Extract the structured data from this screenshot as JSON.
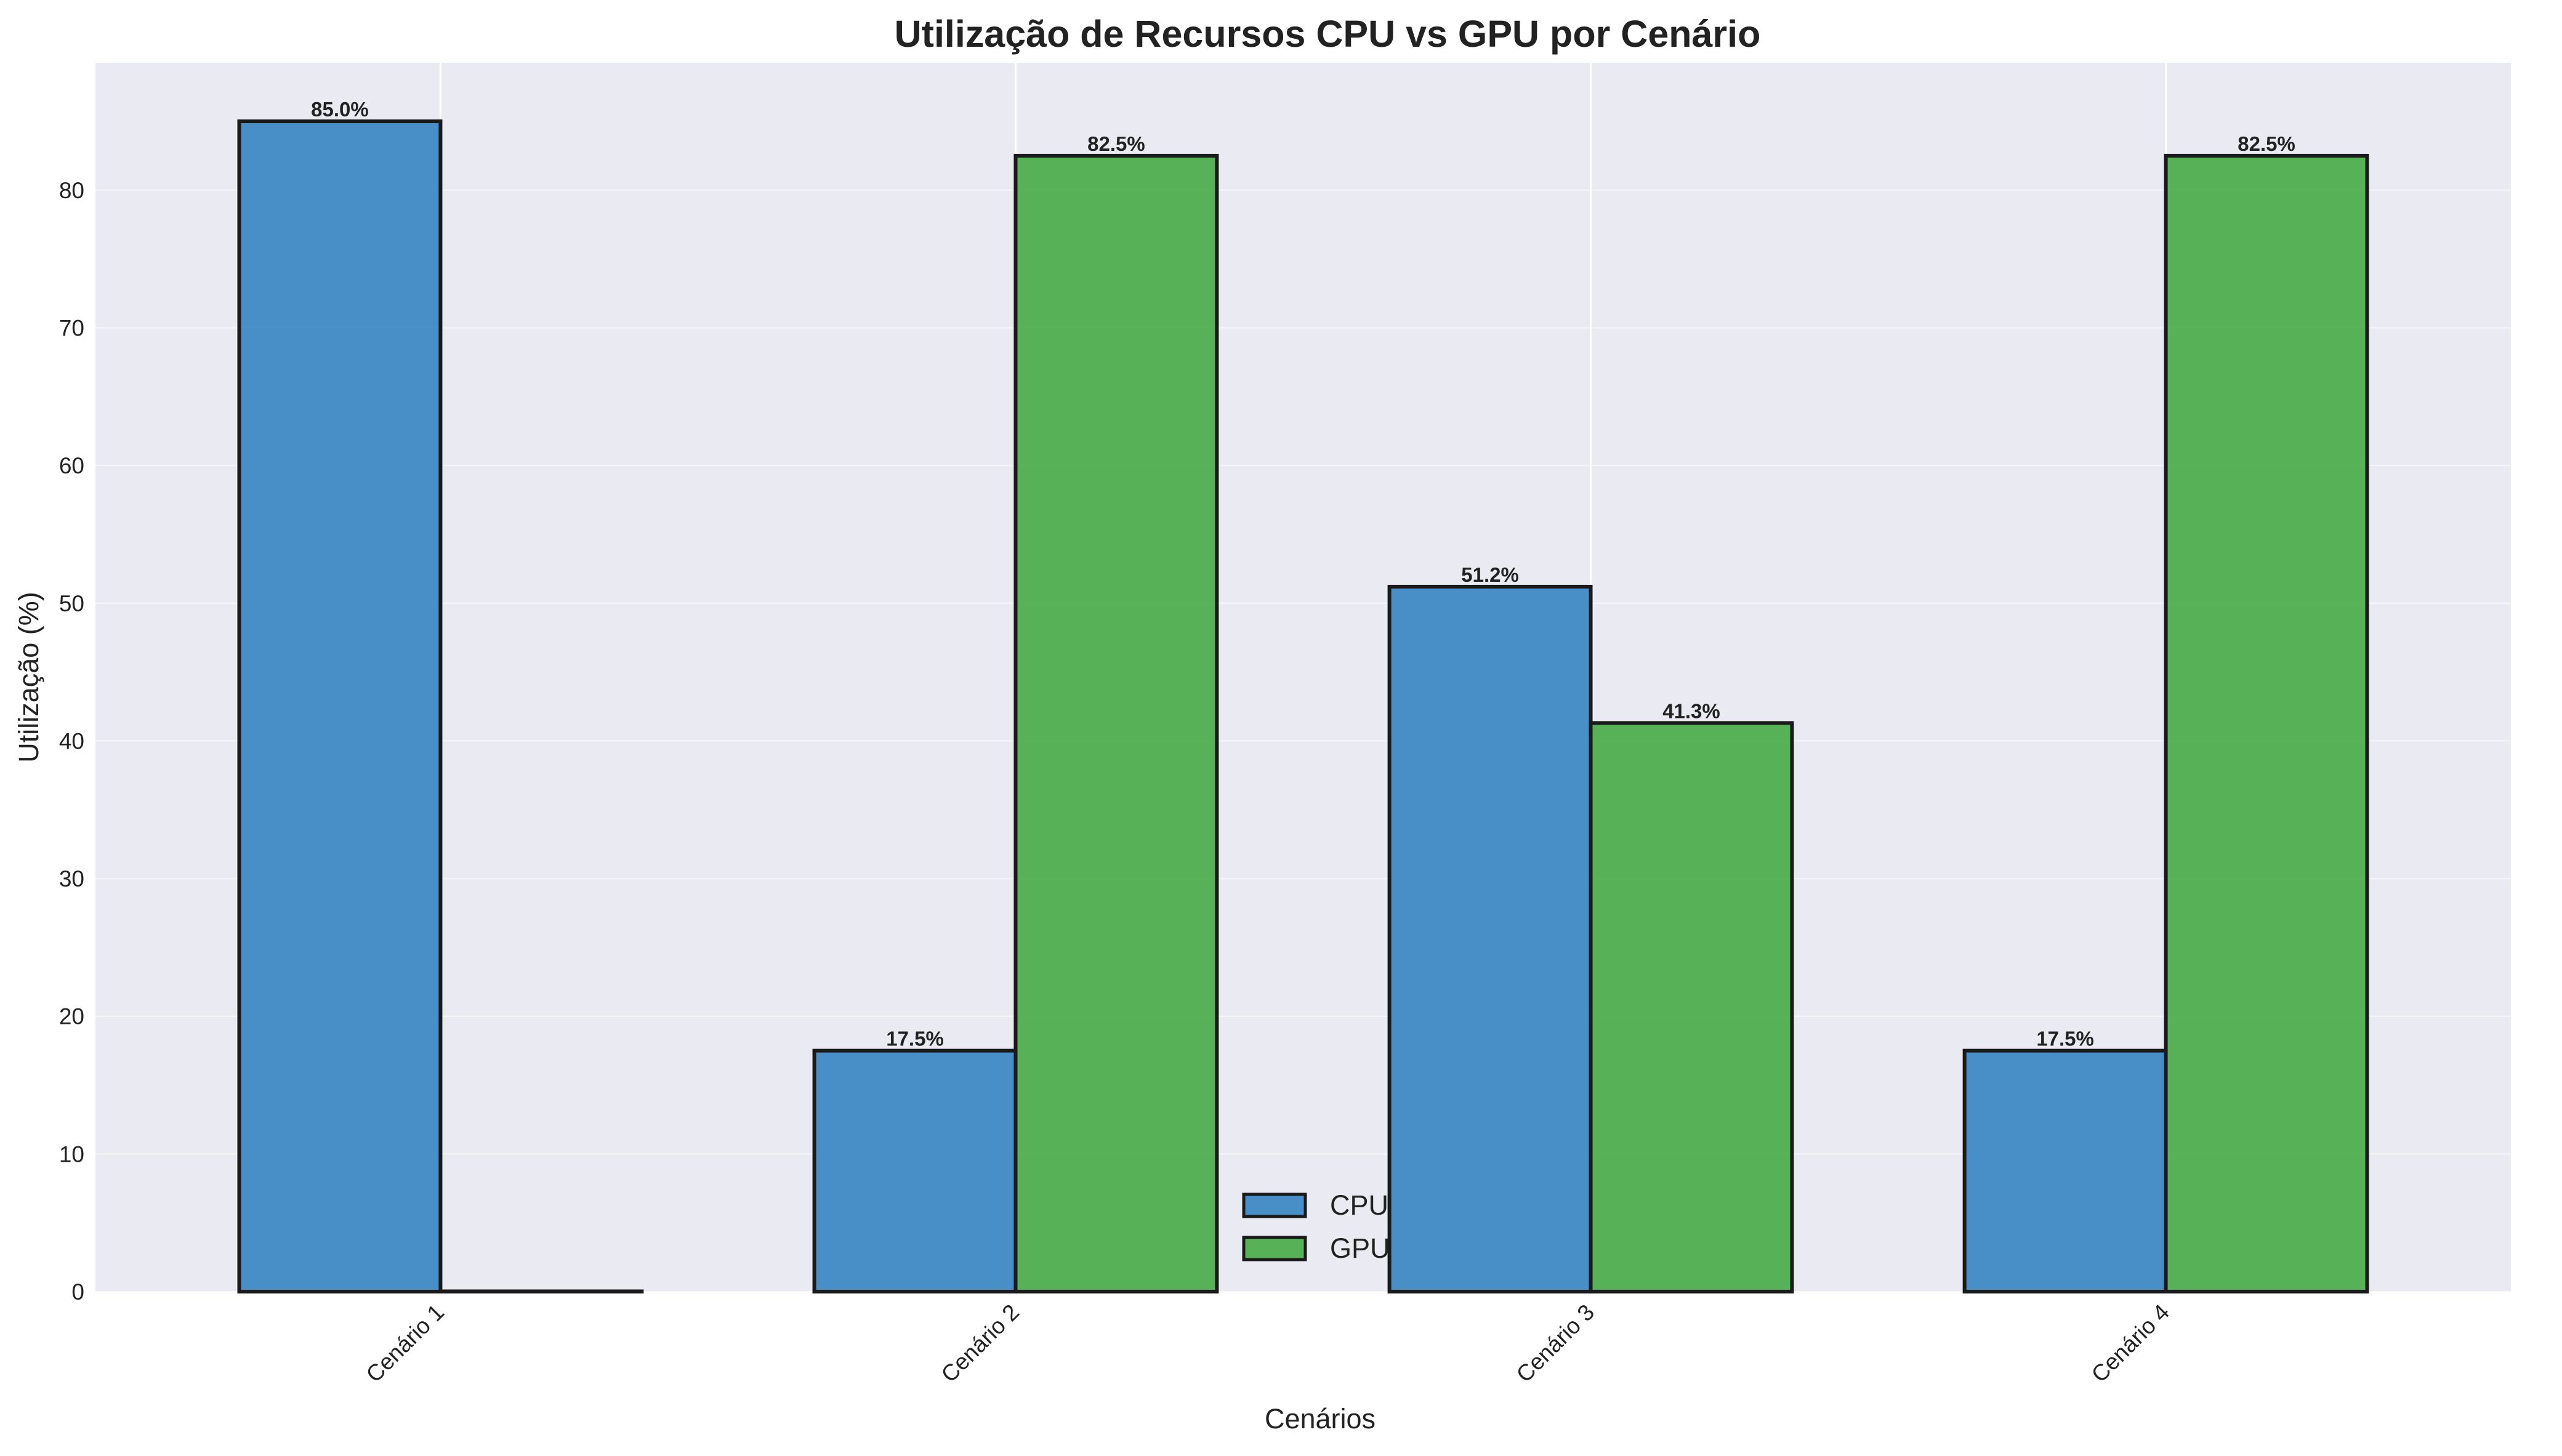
{
  "chart_data": {
    "type": "bar",
    "title": "Utilização de Recursos CPU vs GPU por Cenário",
    "xlabel": "Cenários",
    "ylabel": "Utilização (%)",
    "categories": [
      "Cenário 1",
      "Cenário 2",
      "Cenário 3",
      "Cenário 4"
    ],
    "series": [
      {
        "name": "CPU",
        "color": "#3a87c3",
        "values": [
          85.0,
          17.5,
          51.2,
          17.5
        ],
        "labels": [
          "85.0%",
          "17.5%",
          "51.2%",
          "17.5%"
        ]
      },
      {
        "name": "GPU",
        "color": "#4aac4a",
        "values": [
          0.0,
          82.5,
          41.3,
          82.5
        ],
        "labels": [
          "",
          "82.5%",
          "41.3%",
          "82.5%"
        ]
      }
    ],
    "ylim": [
      0,
      89.25
    ],
    "yticks": [
      0,
      10,
      20,
      30,
      40,
      50,
      60,
      70,
      80
    ],
    "grid": true,
    "legend": "bottom-center",
    "colors": {
      "plot_background": "#eaeaf2",
      "grid": "#ffffff",
      "bar_edge": "#1a1a1a",
      "text": "#222222"
    }
  }
}
